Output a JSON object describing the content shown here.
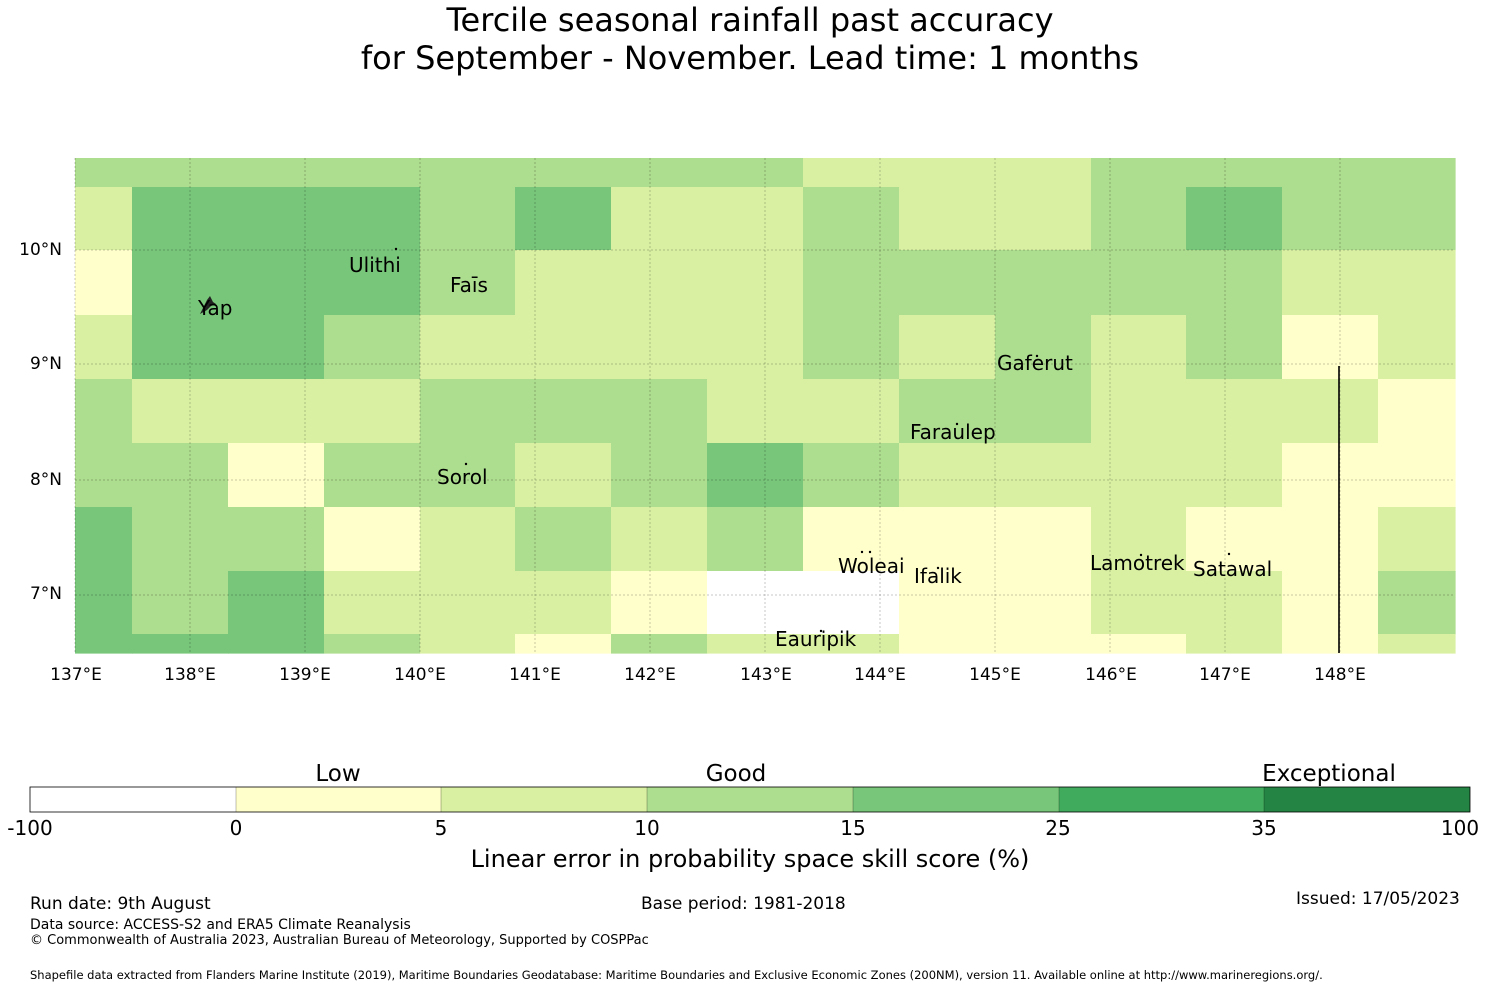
{
  "title": {
    "line1": "Tercile seasonal rainfall past accuracy",
    "line2": "for September - November. Lead time: 1 months"
  },
  "map": {
    "lat_labels": [
      "10°N",
      "9°N",
      "8°N",
      "7°N"
    ],
    "lon_labels": [
      "137°E",
      "138°E",
      "139°E",
      "140°E",
      "141°E",
      "142°E",
      "143°E",
      "144°E",
      "145°E",
      "146°E",
      "147°E",
      "148°E"
    ],
    "places": [
      "Ulithi",
      "Yap",
      "Faīs",
      "Gaferut",
      "Faraulep",
      "Sorol",
      "Woleai",
      "Ifalik",
      "Lamotrek",
      "Satawal",
      "Eauripik"
    ],
    "class_colors": [
      "#ffffff",
      "#ffffcc",
      "#d9f0a3",
      "#addd8e",
      "#78c679",
      "#41ab5d",
      "#238443"
    ]
  },
  "colorbar": {
    "categories": [
      "Low",
      "Good",
      "Exceptional"
    ],
    "ticks": [
      "-100",
      "0",
      "5",
      "10",
      "15",
      "25",
      "35",
      "100"
    ],
    "label": "Linear error in probability space skill score (%)"
  },
  "footer": {
    "run_date": "Run date: 9th August",
    "base_period": "Base period: 1981-2018",
    "issued": "Issued: 17/05/2023",
    "data_source": "Data source: ACCESS-S2 and ERA5 Climate Reanalysis",
    "copyright": "© Commonwealth of Australia 2023, Australian Bureau of Meteorology, Supported by COSPPac",
    "shapefile": "Shapefile data extracted from Flanders Marine Institute (2019), Maritime Boundaries Geodatabase: Maritime Boundaries and Exclusive Economic Zones (200NM), version 11. Available online at http://www.marineregions.org/."
  }
}
